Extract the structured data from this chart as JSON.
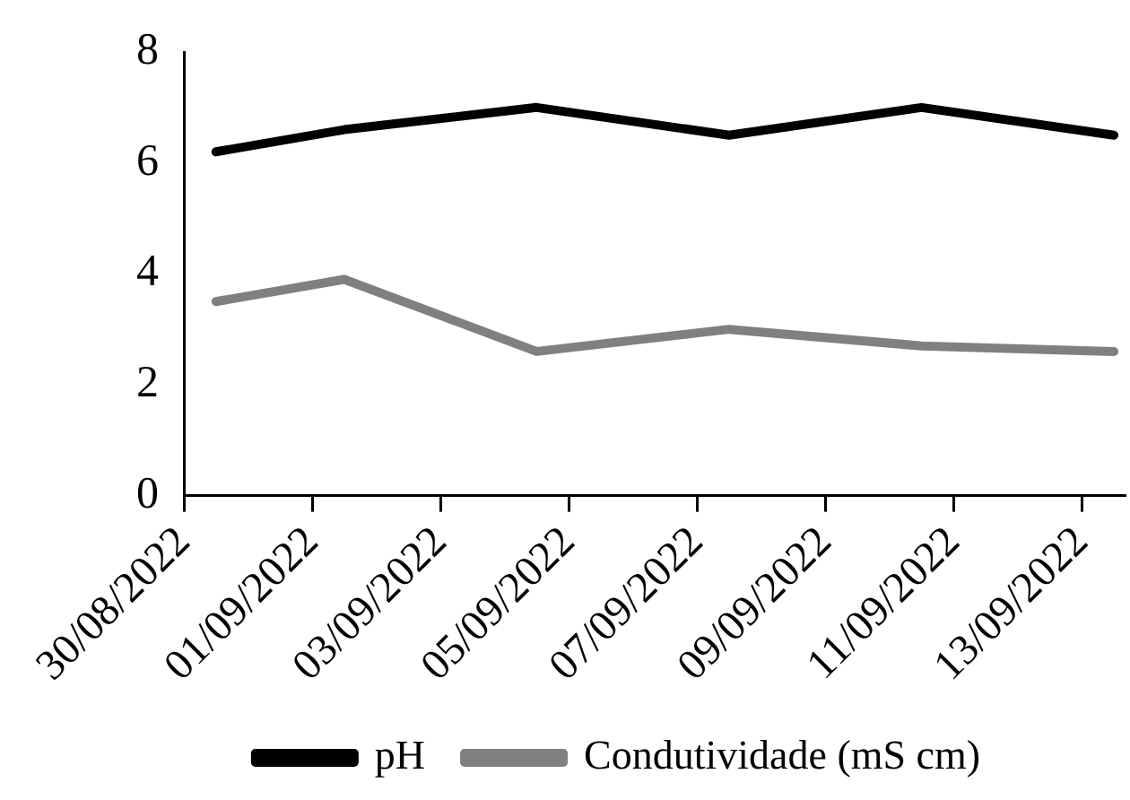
{
  "chart_data": {
    "type": "line",
    "x": [
      "2022-08-30T12:00",
      "2022-09-01T12:00",
      "2022-09-04T12:00",
      "2022-09-07T12:00",
      "2022-09-10T12:00",
      "2022-09-13T12:00"
    ],
    "series": [
      {
        "name": "pH",
        "color": "#000000",
        "values": [
          6.2,
          6.6,
          7.0,
          6.5,
          7.0,
          6.5
        ]
      },
      {
        "name": "Condutividade (mS cm)",
        "color": "#808080",
        "values": [
          3.5,
          3.9,
          2.6,
          3.0,
          2.7,
          2.6
        ]
      }
    ],
    "xlim": [
      "2022-08-30",
      "2022-09-13T16:00"
    ],
    "xticks": [
      {
        "value": "2022-08-30",
        "label": "30/08/2022"
      },
      {
        "value": "2022-09-01",
        "label": "01/09/2022"
      },
      {
        "value": "2022-09-03",
        "label": "03/09/2022"
      },
      {
        "value": "2022-09-05",
        "label": "05/09/2022"
      },
      {
        "value": "2022-09-07",
        "label": "07/09/2022"
      },
      {
        "value": "2022-09-09",
        "label": "09/09/2022"
      },
      {
        "value": "2022-09-11",
        "label": "11/09/2022"
      },
      {
        "value": "2022-09-13",
        "label": "13/09/2022"
      }
    ],
    "ylim": [
      0,
      8
    ],
    "yticks": [
      0,
      2,
      4,
      6,
      8
    ],
    "grid": false,
    "legend": "bottom",
    "marker": "none",
    "line_style": "solid"
  }
}
